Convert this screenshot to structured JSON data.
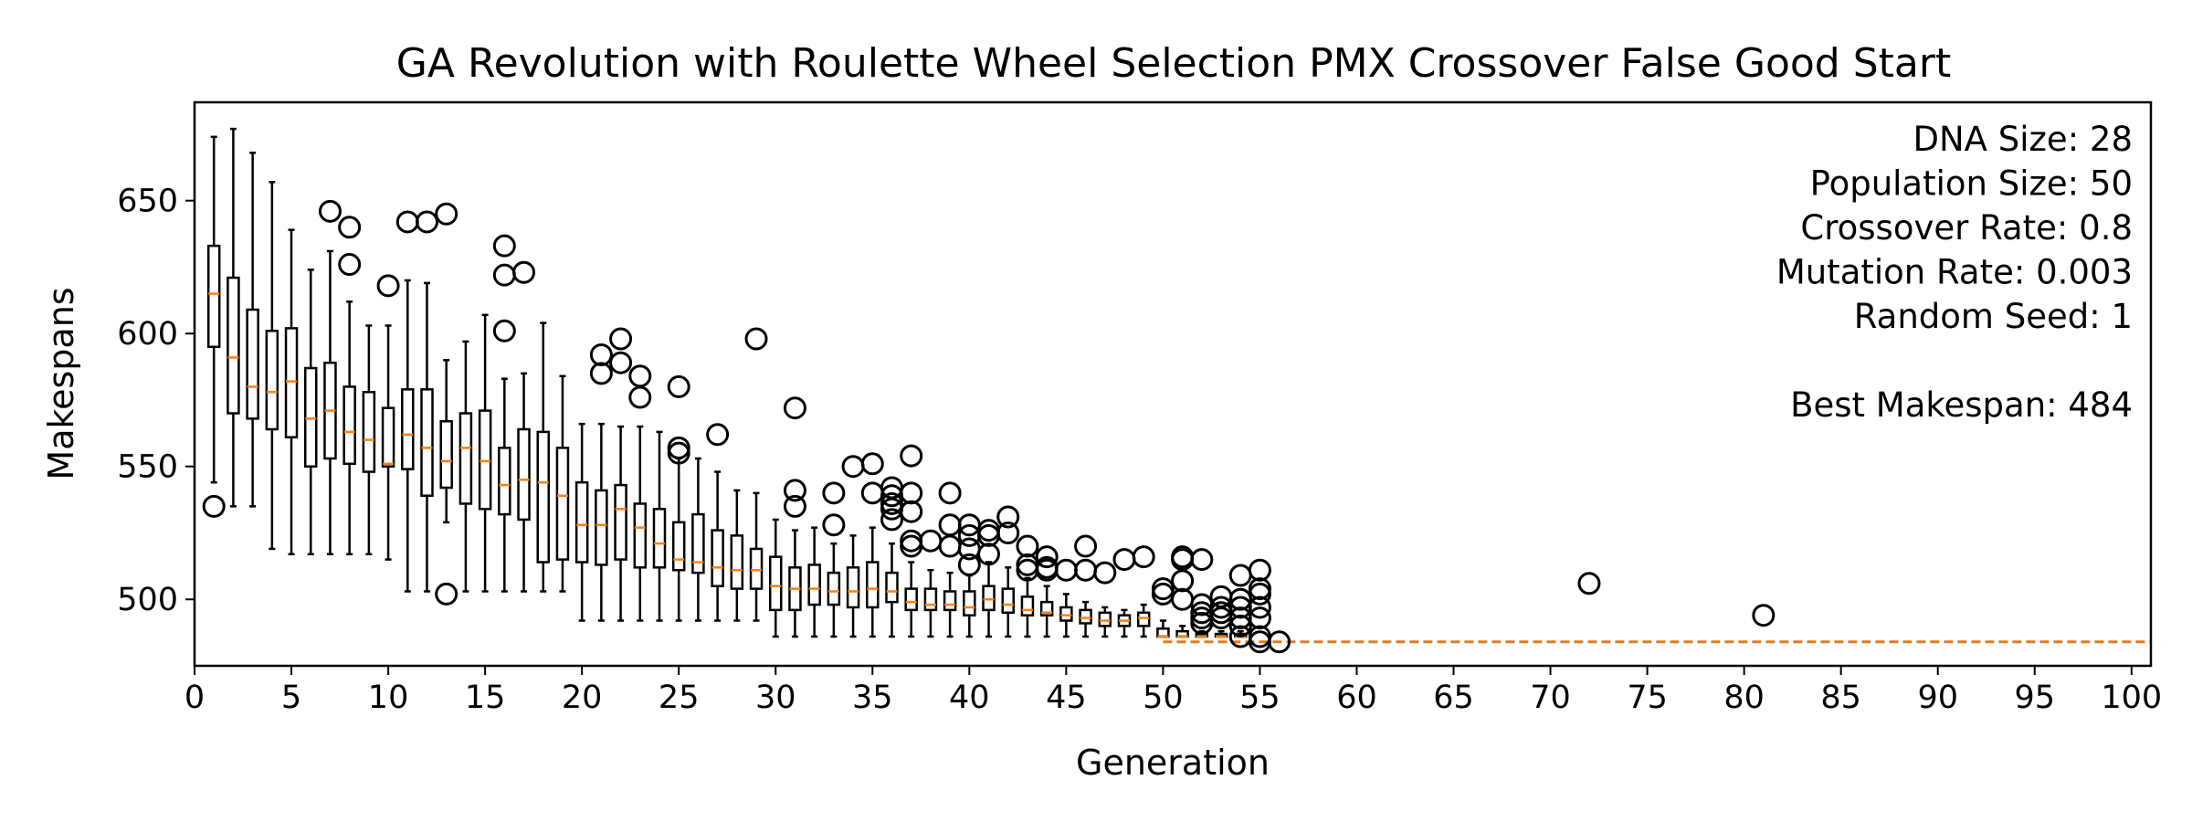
{
  "chart_data": {
    "type": "boxplot",
    "title": "GA Revolution with Roulette Wheel Selection PMX Crossover False Good Start",
    "xlabel": "Generation",
    "ylabel": "Makespans",
    "xlim": [
      0,
      101
    ],
    "ylim": [
      475,
      687
    ],
    "x_ticks": [
      "0",
      "5",
      "10",
      "15",
      "20",
      "25",
      "30",
      "35",
      "40",
      "45",
      "50",
      "55",
      "60",
      "65",
      "70",
      "75",
      "80",
      "85",
      "90",
      "95",
      "100"
    ],
    "y_ticks": [
      "500",
      "550",
      "600",
      "650"
    ],
    "grid": false,
    "annotation_lines": [
      "DNA Size: 28",
      "Population Size: 50",
      "Crossover Rate: 0.8",
      "Mutation Rate: 0.003",
      "Random Seed: 1",
      "",
      "Best Makespan: 484"
    ],
    "median_color": "#ff7f0e",
    "box_color": "#000000",
    "best_makespan_line": {
      "from_generation": 50,
      "to_generation": 101,
      "value": 484,
      "color": "#e07b24"
    },
    "boxes": [
      {
        "g": 1,
        "q1": 595,
        "med": 615,
        "q3": 633,
        "lo": 544,
        "hi": 674,
        "out": [
          535
        ]
      },
      {
        "g": 2,
        "q1": 570,
        "med": 591,
        "q3": 621,
        "lo": 535,
        "hi": 677,
        "out": []
      },
      {
        "g": 3,
        "q1": 568,
        "med": 580,
        "q3": 609,
        "lo": 535,
        "hi": 668,
        "out": []
      },
      {
        "g": 4,
        "q1": 564,
        "med": 578,
        "q3": 601,
        "lo": 519,
        "hi": 657,
        "out": []
      },
      {
        "g": 5,
        "q1": 561,
        "med": 582,
        "q3": 602,
        "lo": 517,
        "hi": 639,
        "out": []
      },
      {
        "g": 6,
        "q1": 550,
        "med": 568,
        "q3": 587,
        "lo": 517,
        "hi": 624,
        "out": []
      },
      {
        "g": 7,
        "q1": 553,
        "med": 571,
        "q3": 589,
        "lo": 517,
        "hi": 631,
        "out": [
          646
        ]
      },
      {
        "g": 8,
        "q1": 551,
        "med": 563,
        "q3": 580,
        "lo": 517,
        "hi": 612,
        "out": [
          640,
          626
        ]
      },
      {
        "g": 9,
        "q1": 548,
        "med": 560,
        "q3": 578,
        "lo": 517,
        "hi": 603,
        "out": []
      },
      {
        "g": 10,
        "q1": 550,
        "med": 551,
        "q3": 572,
        "lo": 515,
        "hi": 603,
        "out": [
          618
        ]
      },
      {
        "g": 11,
        "q1": 549,
        "med": 562,
        "q3": 579,
        "lo": 503,
        "hi": 620,
        "out": [
          642
        ]
      },
      {
        "g": 12,
        "q1": 539,
        "med": 557,
        "q3": 579,
        "lo": 503,
        "hi": 619,
        "out": [
          642
        ]
      },
      {
        "g": 13,
        "q1": 542,
        "med": 552,
        "q3": 567,
        "lo": 529,
        "hi": 590,
        "out": [
          645,
          502
        ]
      },
      {
        "g": 14,
        "q1": 536,
        "med": 557,
        "q3": 570,
        "lo": 503,
        "hi": 597,
        "out": []
      },
      {
        "g": 15,
        "q1": 534,
        "med": 552,
        "q3": 571,
        "lo": 503,
        "hi": 607,
        "out": []
      },
      {
        "g": 16,
        "q1": 532,
        "med": 543,
        "q3": 557,
        "lo": 503,
        "hi": 583,
        "out": [
          633,
          622,
          601
        ]
      },
      {
        "g": 17,
        "q1": 530,
        "med": 545,
        "q3": 564,
        "lo": 503,
        "hi": 585,
        "out": [
          623
        ]
      },
      {
        "g": 18,
        "q1": 514,
        "med": 544,
        "q3": 563,
        "lo": 503,
        "hi": 604,
        "out": []
      },
      {
        "g": 19,
        "q1": 515,
        "med": 539,
        "q3": 557,
        "lo": 503,
        "hi": 584,
        "out": []
      },
      {
        "g": 20,
        "q1": 514,
        "med": 528,
        "q3": 544,
        "lo": 492,
        "hi": 566,
        "out": []
      },
      {
        "g": 21,
        "q1": 513,
        "med": 528,
        "q3": 541,
        "lo": 492,
        "hi": 566,
        "out": [
          592,
          585
        ]
      },
      {
        "g": 22,
        "q1": 515,
        "med": 534,
        "q3": 543,
        "lo": 492,
        "hi": 565,
        "out": [
          598,
          589
        ]
      },
      {
        "g": 23,
        "q1": 512,
        "med": 527,
        "q3": 536,
        "lo": 492,
        "hi": 565,
        "out": [
          584,
          576
        ]
      },
      {
        "g": 24,
        "q1": 512,
        "med": 521,
        "q3": 534,
        "lo": 492,
        "hi": 563,
        "out": []
      },
      {
        "g": 25,
        "q1": 511,
        "med": 515,
        "q3": 529,
        "lo": 492,
        "hi": 553,
        "out": [
          580,
          557,
          555
        ]
      },
      {
        "g": 26,
        "q1": 510,
        "med": 514,
        "q3": 532,
        "lo": 492,
        "hi": 553,
        "out": []
      },
      {
        "g": 27,
        "q1": 505,
        "med": 512,
        "q3": 526,
        "lo": 492,
        "hi": 548,
        "out": [
          562
        ]
      },
      {
        "g": 28,
        "q1": 504,
        "med": 511,
        "q3": 524,
        "lo": 492,
        "hi": 541,
        "out": []
      },
      {
        "g": 29,
        "q1": 504,
        "med": 511,
        "q3": 519,
        "lo": 492,
        "hi": 540,
        "out": [
          598
        ]
      },
      {
        "g": 30,
        "q1": 496,
        "med": 505,
        "q3": 516,
        "lo": 486,
        "hi": 530,
        "out": []
      },
      {
        "g": 31,
        "q1": 496,
        "med": 504,
        "q3": 512,
        "lo": 486,
        "hi": 526,
        "out": [
          572,
          541,
          535
        ]
      },
      {
        "g": 32,
        "q1": 498,
        "med": 504,
        "q3": 513,
        "lo": 486,
        "hi": 527,
        "out": []
      },
      {
        "g": 33,
        "q1": 498,
        "med": 503,
        "q3": 510,
        "lo": 486,
        "hi": 521,
        "out": [
          540,
          528
        ]
      },
      {
        "g": 34,
        "q1": 497,
        "med": 503,
        "q3": 512,
        "lo": 486,
        "hi": 524,
        "out": [
          550
        ]
      },
      {
        "g": 35,
        "q1": 497,
        "med": 504,
        "q3": 514,
        "lo": 486,
        "hi": 527,
        "out": [
          551,
          540
        ]
      },
      {
        "g": 36,
        "q1": 499,
        "med": 503,
        "q3": 510,
        "lo": 486,
        "hi": 521,
        "out": [
          542,
          539,
          536,
          534,
          530
        ]
      },
      {
        "g": 37,
        "q1": 496,
        "med": 499,
        "q3": 504,
        "lo": 486,
        "hi": 514,
        "out": [
          554,
          540,
          533,
          522,
          520
        ]
      },
      {
        "g": 38,
        "q1": 496,
        "med": 498,
        "q3": 504,
        "lo": 486,
        "hi": 511,
        "out": [
          522
        ]
      },
      {
        "g": 39,
        "q1": 496,
        "med": 498,
        "q3": 503,
        "lo": 486,
        "hi": 510,
        "out": [
          540,
          528,
          520
        ]
      },
      {
        "g": 40,
        "q1": 494,
        "med": 497,
        "q3": 503,
        "lo": 486,
        "hi": 509,
        "out": [
          528,
          524,
          519,
          513
        ]
      },
      {
        "g": 41,
        "q1": 496,
        "med": 500,
        "q3": 505,
        "lo": 486,
        "hi": 514,
        "out": [
          526,
          524,
          517
        ]
      },
      {
        "g": 42,
        "q1": 495,
        "med": 498,
        "q3": 504,
        "lo": 486,
        "hi": 512,
        "out": [
          531,
          525
        ]
      },
      {
        "g": 43,
        "q1": 494,
        "med": 496,
        "q3": 501,
        "lo": 486,
        "hi": 508,
        "out": [
          520,
          513,
          511
        ]
      },
      {
        "g": 44,
        "q1": 494,
        "med": 495,
        "q3": 499,
        "lo": 486,
        "hi": 505,
        "out": [
          516,
          512,
          511
        ]
      },
      {
        "g": 45,
        "q1": 492,
        "med": 494,
        "q3": 497,
        "lo": 486,
        "hi": 502,
        "out": [
          511
        ]
      },
      {
        "g": 46,
        "q1": 491,
        "med": 493,
        "q3": 496,
        "lo": 486,
        "hi": 499,
        "out": [
          520,
          511
        ]
      },
      {
        "g": 47,
        "q1": 490,
        "med": 492,
        "q3": 495,
        "lo": 486,
        "hi": 497,
        "out": [
          510
        ]
      },
      {
        "g": 48,
        "q1": 490,
        "med": 492,
        "q3": 494,
        "lo": 486,
        "hi": 496,
        "out": [
          515
        ]
      },
      {
        "g": 49,
        "q1": 490,
        "med": 493,
        "q3": 495,
        "lo": 486,
        "hi": 498,
        "out": [
          516
        ]
      },
      {
        "g": 50,
        "q1": 486,
        "med": 486,
        "q3": 489,
        "lo": 486,
        "hi": 492,
        "out": [
          504,
          502
        ]
      },
      {
        "g": 51,
        "q1": 486,
        "med": 486,
        "q3": 488,
        "lo": 486,
        "hi": 490,
        "out": [
          516,
          515,
          507,
          500
        ]
      },
      {
        "g": 52,
        "q1": 486,
        "med": 486,
        "q3": 487,
        "lo": 486,
        "hi": 488,
        "out": [
          515,
          498,
          495,
          493,
          491
        ]
      },
      {
        "g": 53,
        "q1": 486,
        "med": 486,
        "q3": 487,
        "lo": 486,
        "hi": 488,
        "out": [
          501,
          497,
          495,
          493
        ]
      },
      {
        "g": 54,
        "q1": 486,
        "med": 486,
        "q3": 487,
        "lo": 486,
        "hi": 488,
        "out": [
          509,
          500,
          497,
          493,
          490,
          486
        ]
      },
      {
        "g": 55,
        "q1": 484,
        "med": 484,
        "q3": 484,
        "lo": 484,
        "hi": 484,
        "out": [
          511,
          504,
          502,
          497,
          493,
          486,
          484
        ]
      },
      {
        "g": 56,
        "q1": 484,
        "med": 484,
        "q3": 484,
        "lo": 484,
        "hi": 484,
        "out": [
          484
        ]
      },
      {
        "g": 72,
        "q1": 484,
        "med": 484,
        "q3": 484,
        "lo": 484,
        "hi": 484,
        "out": [
          506
        ]
      },
      {
        "g": 81,
        "q1": 484,
        "med": 484,
        "q3": 484,
        "lo": 484,
        "hi": 484,
        "out": [
          494
        ]
      }
    ]
  }
}
